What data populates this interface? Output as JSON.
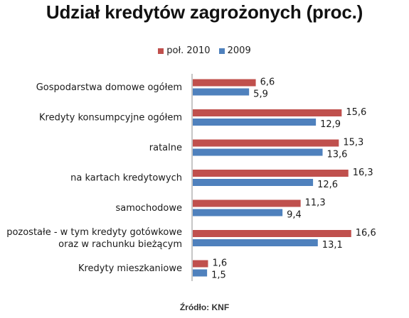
{
  "chart_data": {
    "type": "bar",
    "orientation": "horizontal",
    "title": "Udział kredytów zagrożonych (proc.)",
    "categories": [
      [
        "Gospodarstwa domowe ogółem"
      ],
      [
        "Kredyty konsumpcyjne ogółem"
      ],
      [
        "ratalne"
      ],
      [
        "na kartach kredytowych"
      ],
      [
        "samochodowe"
      ],
      [
        "pozostałe - w tym  kredyty gotówkowe",
        "oraz w rachunku bieżącym"
      ],
      [
        "Kredyty mieszkaniowe"
      ]
    ],
    "series": [
      {
        "name": "poł. 2010",
        "color": "#c0504d",
        "values": [
          6.6,
          15.6,
          15.3,
          16.3,
          11.3,
          16.6,
          1.6
        ],
        "labels": [
          "6,6",
          "15,6",
          "15,3",
          "16,3",
          "11,3",
          "16,6",
          "1,6"
        ]
      },
      {
        "name": "2009",
        "color": "#4f81bd",
        "values": [
          5.9,
          12.9,
          13.6,
          12.6,
          9.4,
          13.1,
          1.5
        ],
        "labels": [
          "5,9",
          "12,9",
          "13,6",
          "12,6",
          "9,4",
          "13,1",
          "1,5"
        ]
      }
    ],
    "legend_position": "top",
    "grid": false,
    "xlim": [
      0,
      18
    ]
  },
  "source_note": "Źródło: KNF"
}
